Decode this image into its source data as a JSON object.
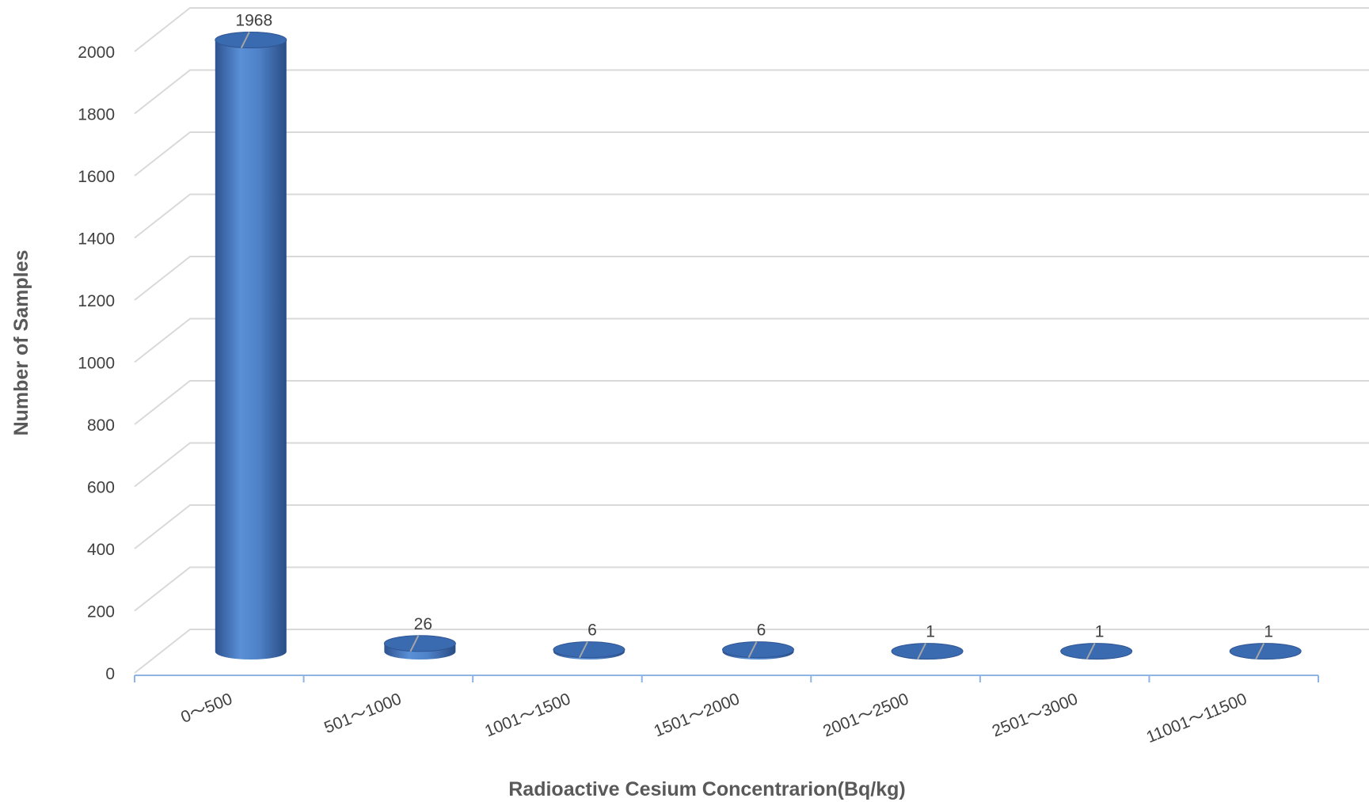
{
  "chart_data": {
    "type": "bar",
    "style": "3d-cylinder",
    "categories": [
      "0～500",
      "501～1000",
      "1001～1500",
      "1501～2000",
      "2001～2500",
      "2501～3000",
      "11001～11500"
    ],
    "series": [
      {
        "values": [
          1968,
          26,
          6,
          6,
          1,
          1,
          1
        ]
      }
    ],
    "data_labels": [
      "1968",
      "26",
      "6",
      "6",
      "1",
      "1",
      "1"
    ],
    "xlabel": "Radioactive Cesium Concentrarion(Bq/kg)",
    "ylabel": "Number of Samples",
    "ylim": [
      0,
      2000
    ],
    "yticks": [
      "0",
      "200",
      "400",
      "600",
      "800",
      "1000",
      "1200",
      "1400",
      "1600",
      "1800",
      "2000"
    ],
    "grid": true,
    "legend": "none",
    "colors": {
      "bar": "#4f81c7",
      "bar_dark": "#2f5592",
      "bar_top": "#3a6ab0",
      "grid": "#d9d9d9",
      "text": "#404040"
    }
  }
}
